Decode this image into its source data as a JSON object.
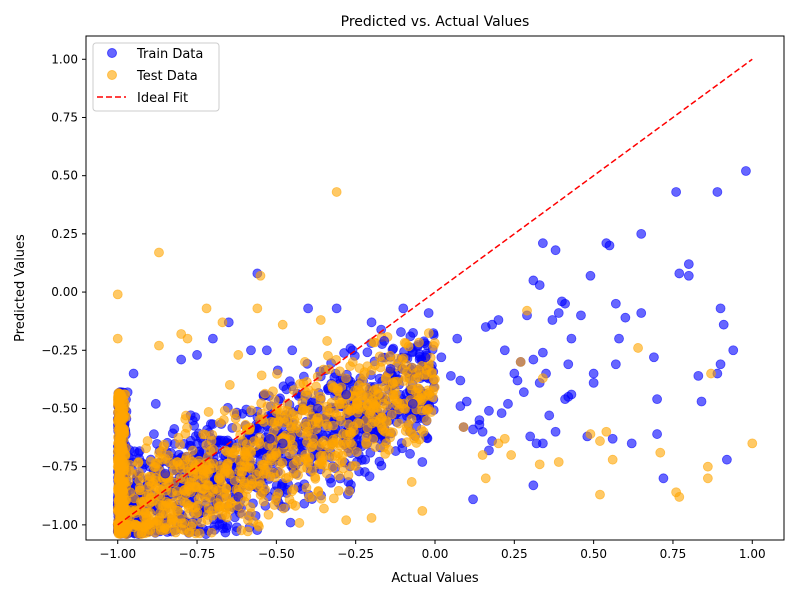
{
  "chart_data": {
    "type": "scatter",
    "title": "Predicted vs. Actual Values",
    "xlabel": "Actual Values",
    "ylabel": "Predicted Values",
    "xlim": [
      -1.1,
      1.1
    ],
    "ylim": [
      -1.065,
      1.1
    ],
    "xticks": [
      -1.0,
      -0.75,
      -0.5,
      -0.25,
      0.0,
      0.25,
      0.5,
      0.75,
      1.0
    ],
    "xtick_labels": [
      "−1.00",
      "−0.75",
      "−0.50",
      "−0.25",
      "0.00",
      "0.25",
      "0.50",
      "0.75",
      "1.00"
    ],
    "yticks": [
      -1.0,
      -0.75,
      -0.5,
      -0.25,
      0.0,
      0.25,
      0.5,
      0.75,
      1.0
    ],
    "ytick_labels": [
      "−1.00",
      "−0.75",
      "−0.50",
      "−0.25",
      "0.00",
      "0.25",
      "0.50",
      "0.75",
      "1.00"
    ],
    "grid": false,
    "legend_position": "top-left",
    "series": [
      {
        "name": "Train Data",
        "kind": "scatter",
        "color": "#0000ff",
        "alpha": 0.6,
        "x": [
          0.98,
          0.76,
          0.89,
          0.34,
          0.38,
          0.54,
          0.55,
          0.65,
          0.8,
          0.77,
          0.8,
          0.31,
          0.33,
          0.29,
          0.4,
          0.41,
          0.49,
          0.57,
          0.6,
          0.65,
          0.9,
          0.91,
          0.9,
          0.94,
          0.58,
          0.43,
          0.46,
          0.39,
          0.37,
          0.31,
          0.34,
          0.35,
          0.42,
          0.27,
          0.25,
          0.2,
          0.18,
          0.16,
          0.22,
          0.26,
          0.28,
          0.33,
          0.43,
          0.5,
          0.5,
          0.57,
          0.69,
          0.7,
          0.83,
          0.84,
          0.89,
          0.41,
          0.42,
          0.36,
          0.23,
          0.17,
          0.14,
          0.12,
          0.1,
          0.08,
          0.08,
          0.09,
          0.14,
          0.15,
          0.17,
          0.21,
          0.05,
          0.07,
          0.02,
          0.3,
          0.32,
          0.34,
          0.48,
          0.56,
          0.62,
          0.7,
          0.72,
          0.92,
          0.12,
          0.18,
          0.31,
          0.38,
          -0.02,
          -0.03,
          -0.04,
          -0.1,
          -0.16,
          -0.2,
          -0.26,
          -0.31,
          -0.4,
          -0.45,
          -0.53,
          -0.56,
          -0.58,
          -0.65,
          -0.7,
          -0.75,
          -0.8,
          -0.88,
          -0.95,
          -0.52,
          -0.37,
          -0.28,
          -0.14,
          -0.07,
          -0.22,
          -0.48,
          -0.62,
          -0.85
        ],
        "y": [
          0.52,
          0.43,
          0.43,
          0.21,
          0.18,
          0.21,
          0.2,
          0.25,
          0.12,
          0.08,
          0.07,
          0.05,
          0.03,
          -0.1,
          -0.04,
          -0.05,
          0.07,
          -0.05,
          -0.11,
          -0.09,
          -0.07,
          -0.14,
          -0.31,
          -0.25,
          -0.2,
          -0.2,
          -0.1,
          -0.09,
          -0.12,
          -0.29,
          -0.26,
          -0.35,
          -0.31,
          -0.3,
          -0.35,
          -0.12,
          -0.14,
          -0.15,
          -0.25,
          -0.38,
          -0.43,
          -0.39,
          -0.44,
          -0.35,
          -0.39,
          -0.31,
          -0.28,
          -0.46,
          -0.36,
          -0.47,
          -0.35,
          -0.46,
          -0.45,
          -0.53,
          -0.48,
          -0.51,
          -0.55,
          -0.59,
          -0.47,
          -0.38,
          -0.49,
          -0.58,
          -0.57,
          -0.6,
          -0.68,
          -0.52,
          -0.36,
          -0.2,
          -0.28,
          -0.62,
          -0.65,
          -0.65,
          -0.62,
          -0.63,
          -0.65,
          -0.61,
          -0.8,
          -0.72,
          -0.89,
          -0.64,
          -0.83,
          -0.6,
          -0.09,
          -0.28,
          -0.73,
          -0.07,
          -0.21,
          -0.13,
          -0.25,
          -0.07,
          -0.07,
          -0.25,
          -0.25,
          0.08,
          -0.25,
          -0.13,
          -0.2,
          -0.27,
          -0.29,
          -0.48,
          -0.35,
          -0.63,
          -0.5,
          -0.44,
          -0.33,
          -0.48,
          -0.72,
          -0.65,
          -0.88,
          -0.78
        ]
      },
      {
        "name": "Test Data",
        "kind": "scatter",
        "color": "#ffa500",
        "alpha": 0.6,
        "x": [
          -0.31,
          -0.87,
          -1.0,
          -1.0,
          -0.55,
          -0.56,
          -0.36,
          -0.78,
          -0.8,
          -0.87,
          -0.72,
          -0.67,
          -0.62,
          -0.48,
          -0.41,
          -0.34,
          -0.3,
          -0.24,
          -0.15,
          -0.1,
          -0.06,
          0.29,
          0.34,
          0.27,
          0.64,
          0.87,
          0.49,
          0.52,
          0.54,
          0.56,
          0.71,
          0.76,
          0.77,
          0.86,
          0.86,
          1.0,
          0.52,
          0.39,
          0.33,
          0.24,
          0.22,
          0.2,
          0.16,
          0.15,
          0.09,
          -0.04,
          -0.2,
          -0.28,
          -0.35,
          -0.45,
          -0.58,
          -0.62,
          -0.7,
          -0.83,
          -0.92,
          -0.96,
          -0.99,
          -0.98,
          -0.5,
          -0.6
        ],
        "y": [
          0.43,
          0.17,
          -0.01,
          -0.2,
          0.07,
          -0.07,
          -0.12,
          -0.2,
          -0.18,
          -0.23,
          -0.07,
          -0.13,
          -0.27,
          -0.14,
          -0.3,
          -0.21,
          -0.34,
          -0.4,
          -0.42,
          -0.33,
          -0.43,
          -0.08,
          -0.37,
          -0.3,
          -0.24,
          -0.35,
          -0.61,
          -0.64,
          -0.6,
          -0.72,
          -0.69,
          -0.86,
          -0.88,
          -0.75,
          -0.8,
          -0.65,
          -0.87,
          -0.73,
          -0.74,
          -0.7,
          -0.63,
          -0.65,
          -0.8,
          -0.7,
          -0.58,
          -0.94,
          -0.97,
          -0.98,
          -0.93,
          -0.91,
          -0.95,
          -0.92,
          -0.96,
          -0.98,
          -0.9,
          -0.86,
          -0.83,
          -1.02,
          -0.88,
          -0.9
        ]
      },
      {
        "name": "Ideal Fit",
        "kind": "line",
        "color": "#ff0000",
        "dash": "dashed",
        "x": [
          -1.0,
          1.0
        ],
        "y": [
          -1.0,
          1.0
        ]
      }
    ]
  }
}
